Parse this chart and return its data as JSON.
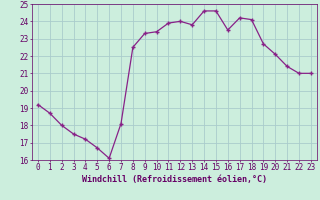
{
  "x": [
    0,
    1,
    2,
    3,
    4,
    5,
    6,
    7,
    8,
    9,
    10,
    11,
    12,
    13,
    14,
    15,
    16,
    17,
    18,
    19,
    20,
    21,
    22,
    23
  ],
  "y": [
    19.2,
    18.7,
    18.0,
    17.5,
    17.2,
    16.7,
    16.1,
    18.1,
    22.5,
    23.3,
    23.4,
    23.9,
    24.0,
    23.8,
    24.6,
    24.6,
    23.5,
    24.2,
    24.1,
    22.7,
    22.1,
    21.4,
    21.0,
    21.0
  ],
  "line_color": "#882288",
  "marker": "+",
  "bg_color": "#cceedd",
  "grid_color": "#aacccc",
  "xlabel": "Windchill (Refroidissement éolien,°C)",
  "xlabel_color": "#660066",
  "tick_color": "#660066",
  "ylim": [
    16,
    25
  ],
  "xlim": [
    -0.5,
    23.5
  ],
  "yticks": [
    16,
    17,
    18,
    19,
    20,
    21,
    22,
    23,
    24,
    25
  ],
  "xticks": [
    0,
    1,
    2,
    3,
    4,
    5,
    6,
    7,
    8,
    9,
    10,
    11,
    12,
    13,
    14,
    15,
    16,
    17,
    18,
    19,
    20,
    21,
    22,
    23
  ],
  "axis_fontsize": 5.5,
  "tick_fontsize": 5.5,
  "xlabel_fontsize": 6.0,
  "xlabel_fontweight": "bold",
  "linewidth": 0.9,
  "markersize": 3.5
}
